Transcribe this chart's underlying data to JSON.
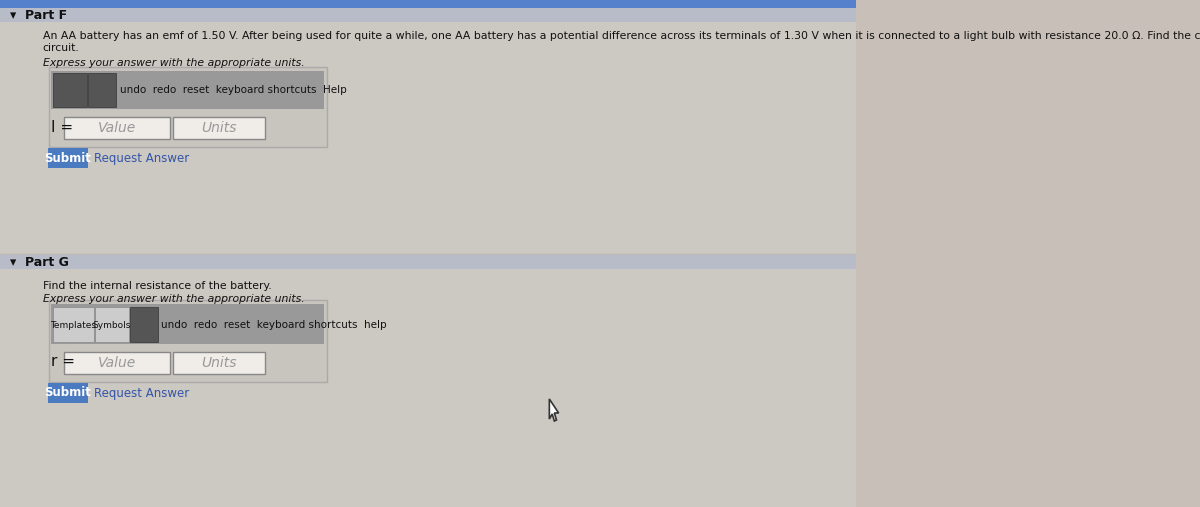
{
  "bg_color": "#c8c0b8",
  "part_f_label": "▾  Part F",
  "part_f_text_1": "An AA battery has an emf of 1.50 V. After being used for quite a while, one AA battery has a potential difference across its terminals of 1.30 V when it is connected to a light bulb with resistance 20.0 Ω. Find the current in this",
  "part_f_text_2": "circuit.",
  "express_text": "Express your answer with the appropriate units.",
  "toolbar_text_f": "undo  redo  reset  keyboard shortcuts  Help",
  "label_f": "I =",
  "value_placeholder_f": "Value",
  "units_placeholder_f": "Units",
  "submit_text": "Submit",
  "request_answer_text": "Request Answer",
  "part_g_label": "▾  Part G",
  "part_g_text_1": "Find the internal resistance of the battery.",
  "part_g_text_2": "Express your answer with the appropriate units.",
  "toolbar_text_g": "undo  redo  reset  keyboard shortcuts  help",
  "templates_text": "Templates",
  "symbols_text": "Symbols",
  "label_g": "r =",
  "value_placeholder_g": "Value",
  "units_placeholder_g": "Units",
  "submit_text_g": "Submit",
  "request_answer_text_g": "Request Answer",
  "input_bg": "#f0ede8",
  "input_border": "#888888",
  "submit_btn_color": "#4a7abf",
  "submit_text_color": "#ffffff",
  "request_link_color": "#3355aa",
  "toolbar_bg": "#999999",
  "toolbar_dark_btn": "#555555",
  "toolbar_light_btn": "#cccccc",
  "part_label_color": "#111111",
  "body_text_color": "#111111",
  "divider_color": "#bbbbbb",
  "top_blue_bar_color": "#5580cc",
  "section_bg_top": "#ccc8c2",
  "section_bg_bot": "#ccc8c2",
  "outer_box_border": "#aaaaaa",
  "cursor_color": "#333333"
}
